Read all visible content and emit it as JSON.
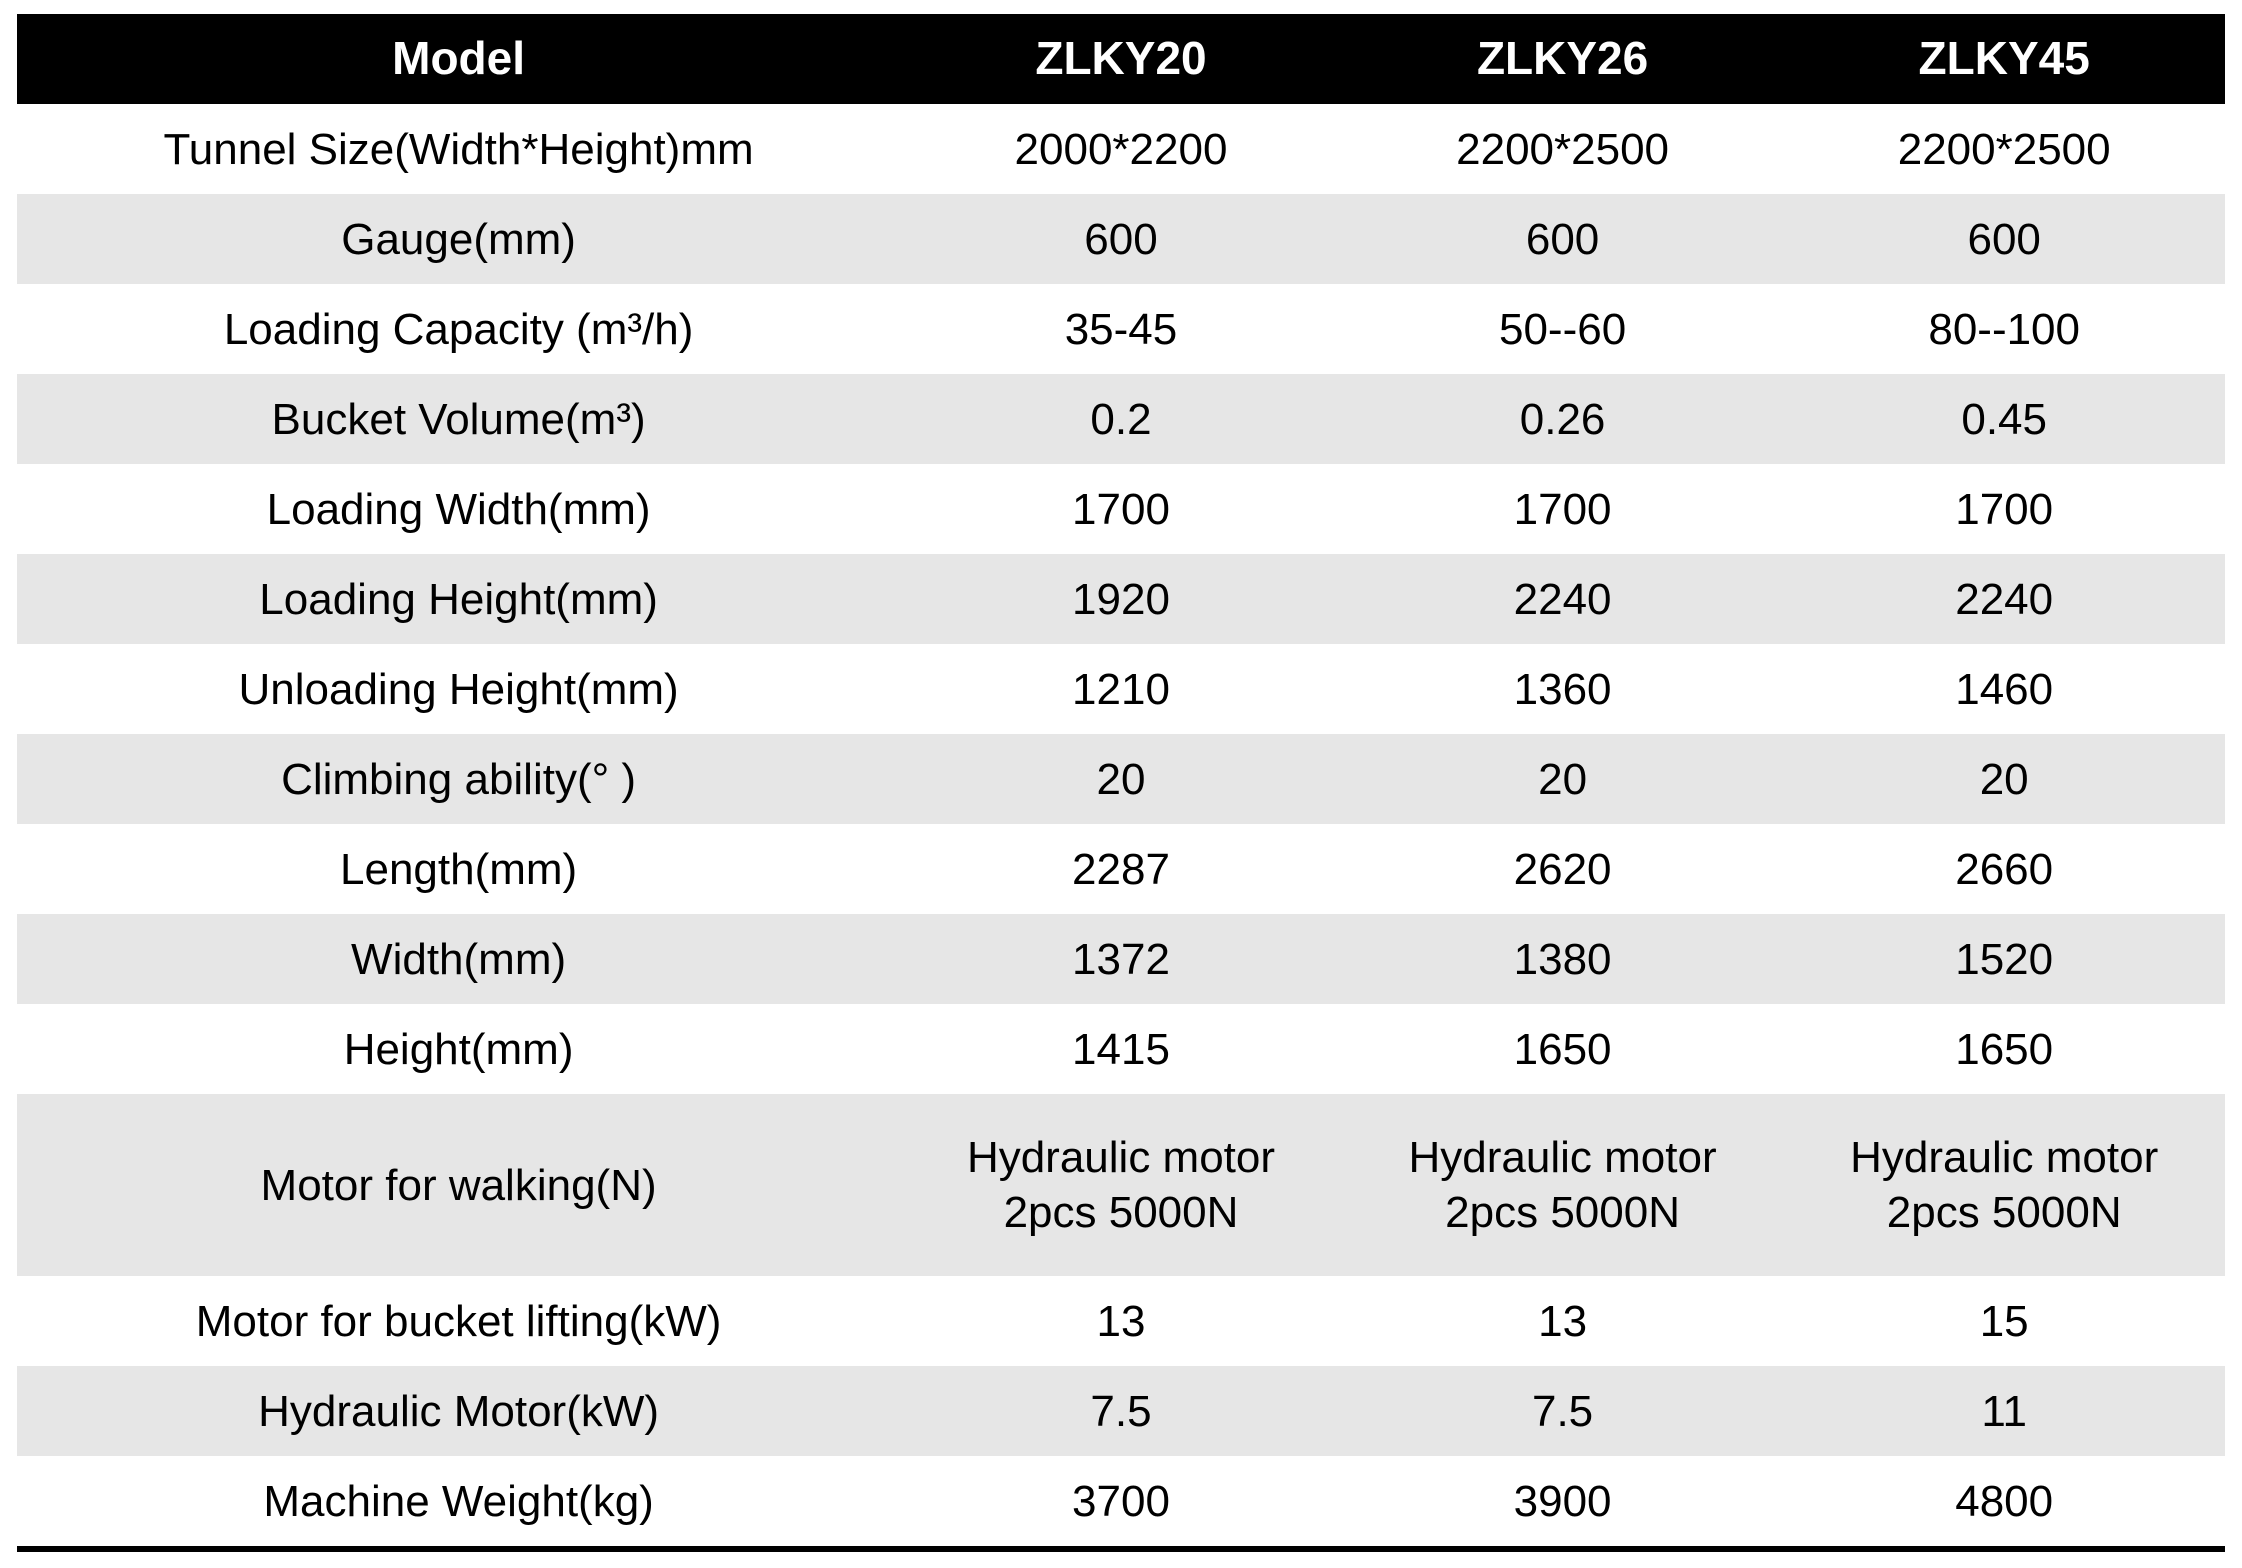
{
  "table": {
    "header": {
      "cells": [
        "Model",
        "ZLKY20",
        "ZLKY26",
        "ZLKY45"
      ]
    },
    "rows": [
      {
        "label": "Tunnel Size(Width*Height)mm",
        "values": [
          "2000*2200",
          "2200*2500",
          "2200*2500"
        ],
        "tall": false
      },
      {
        "label": "Gauge(mm)",
        "values": [
          "600",
          "600",
          "600"
        ],
        "tall": false
      },
      {
        "label": "Loading Capacity (m³/h)",
        "values": [
          "35-45",
          "50--60",
          "80--100"
        ],
        "tall": false
      },
      {
        "label": "Bucket Volume(m³)",
        "values": [
          "0.2",
          "0.26",
          "0.45"
        ],
        "tall": false
      },
      {
        "label": "Loading Width(mm)",
        "values": [
          "1700",
          "1700",
          "1700"
        ],
        "tall": false
      },
      {
        "label": "Loading Height(mm)",
        "values": [
          "1920",
          "2240",
          "2240"
        ],
        "tall": false
      },
      {
        "label": "Unloading Height(mm)",
        "values": [
          "1210",
          "1360",
          "1460"
        ],
        "tall": false
      },
      {
        "label": "Climbing ability(° )",
        "values": [
          "20",
          "20",
          "20"
        ],
        "tall": false
      },
      {
        "label": "Length(mm)",
        "values": [
          "2287",
          "2620",
          "2660"
        ],
        "tall": false
      },
      {
        "label": "Width(mm)",
        "values": [
          "1372",
          "1380",
          "1520"
        ],
        "tall": false
      },
      {
        "label": "Height(mm)",
        "values": [
          "1415",
          "1650",
          "1650"
        ],
        "tall": false
      },
      {
        "label": "Motor for walking(N)",
        "values": [
          "Hydraulic motor\n2pcs 5000N",
          "Hydraulic motor\n2pcs 5000N",
          "Hydraulic motor\n2pcs 5000N"
        ],
        "tall": true
      },
      {
        "label": "Motor for bucket lifting(kW)",
        "values": [
          "13",
          "13",
          "15"
        ],
        "tall": false
      },
      {
        "label": "Hydraulic Motor(kW)",
        "values": [
          "7.5",
          "7.5",
          "11"
        ],
        "tall": false
      },
      {
        "label": "Machine Weight(kg)",
        "values": [
          "3700",
          "3900",
          "4800"
        ],
        "tall": false
      }
    ],
    "colors": {
      "header_bg": "#000000",
      "header_text": "#ffffff",
      "row_alt_bg": "#e6e6e6",
      "text": "#000000",
      "bottom_rule": "#000000"
    }
  }
}
